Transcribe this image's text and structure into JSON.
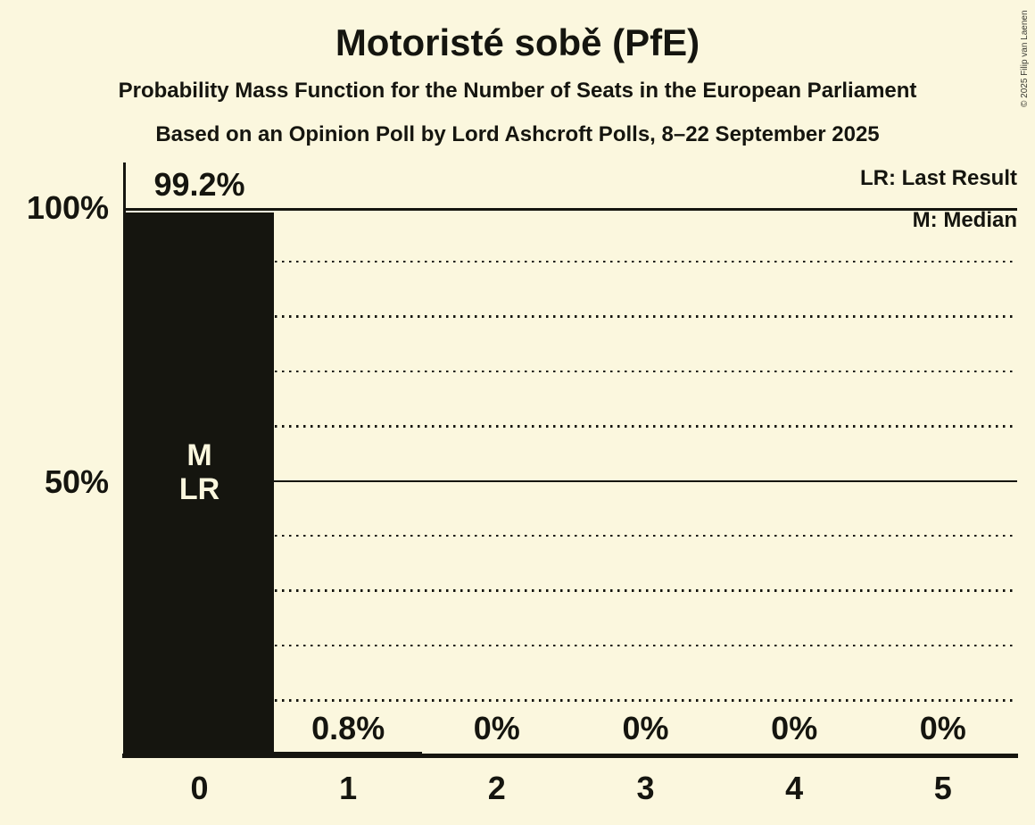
{
  "header": {
    "title": "Motoristé sobě (PfE)",
    "subtitle": "Probability Mass Function for the Number of Seats in the European Parliament",
    "subsubtitle": "Based on an Opinion Poll by Lord Ashcroft Polls, 8–22 September 2025"
  },
  "legend": {
    "last_result": "LR: Last Result",
    "median": "M: Median"
  },
  "copyright": "© 2025 Filip van Laenen",
  "colors": {
    "background": "#fbf7de",
    "ink": "#15150f",
    "bar": "#15150f",
    "bar_marker_text": "#fbf7de"
  },
  "chart_data": {
    "type": "bar",
    "title": "Motoristé sobě (PfE)",
    "categories": [
      "0",
      "1",
      "2",
      "3",
      "4",
      "5"
    ],
    "values": [
      99.2,
      0.8,
      0,
      0,
      0,
      0
    ],
    "value_labels": [
      "99.2%",
      "0.8%",
      "0%",
      "0%",
      "0%",
      "0%"
    ],
    "xlabel": "",
    "ylabel": "",
    "ylim": [
      0,
      100
    ],
    "ytick_positions": [
      100,
      50
    ],
    "ytick_labels": [
      "100%",
      "50%"
    ],
    "grid": "dotted horizontal lines every 10%, solid lines at 50% and 100%",
    "legend_position": "top-right",
    "median_marker": "M",
    "last_result_marker": "LR",
    "annotations": [
      {
        "category": "0",
        "markers": [
          "M",
          "LR"
        ]
      }
    ]
  }
}
